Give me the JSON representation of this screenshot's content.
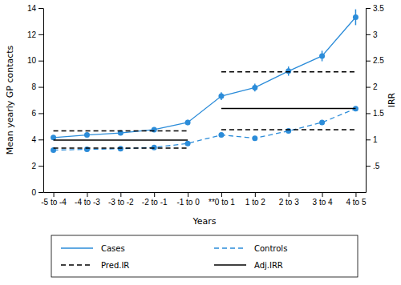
{
  "chart_data": {
    "type": "line",
    "x_label": "Years",
    "y_label": "Mean yearly GP contacts",
    "y2_label": "IRR",
    "categories": [
      "-5 to -4",
      "-4 to -3",
      "-3 to -2",
      "-2 to -1",
      "-1 to 0",
      "**0 to 1",
      "1 to 2",
      "2 to 3",
      "3 to 4",
      "4 to 5"
    ],
    "ylim": [
      0,
      14
    ],
    "yticks": [
      0,
      2,
      4,
      6,
      8,
      10,
      12,
      14
    ],
    "y2lim": [
      0,
      3.5
    ],
    "y2ticks": [
      {
        "value": 0.5,
        "label": ".5"
      },
      1,
      1.5,
      2,
      2.5,
      3,
      3.5
    ],
    "grid": false,
    "legend": "bottom",
    "series": [
      {
        "name": "Cases",
        "type": "line",
        "color": "#2b8cd9",
        "line_style": "solid",
        "marker": "circle",
        "values": [
          4.15,
          4.35,
          4.5,
          4.75,
          5.3,
          7.3,
          7.95,
          9.2,
          10.35,
          13.3
        ],
        "errors": [
          0.15,
          0.15,
          0.15,
          0.15,
          0.2,
          0.3,
          0.3,
          0.35,
          0.4,
          0.6
        ]
      },
      {
        "name": "Controls",
        "type": "line",
        "color": "#2b8cd9",
        "line_style": "dash",
        "marker": "circle",
        "values": [
          3.2,
          3.25,
          3.3,
          3.4,
          3.7,
          4.35,
          4.1,
          4.65,
          5.3,
          6.35
        ]
      },
      {
        "name": "Pred.IR",
        "type": "level",
        "color": "#000000",
        "line_style": "dash",
        "upper": [
          4.65,
          4.65,
          4.65,
          4.65,
          4.65,
          9.15,
          9.15,
          9.15,
          9.15,
          9.15
        ],
        "lower": [
          3.35,
          3.35,
          3.35,
          3.35,
          3.35,
          4.75,
          4.75,
          4.75,
          4.75,
          4.75
        ]
      },
      {
        "name": "Adj.IRR",
        "type": "level",
        "color": "#000000",
        "line_style": "solid",
        "axis": "y2",
        "values": [
          0.99,
          0.99,
          0.99,
          0.99,
          0.99,
          1.59,
          1.59,
          1.59,
          1.59,
          1.59
        ]
      }
    ]
  }
}
